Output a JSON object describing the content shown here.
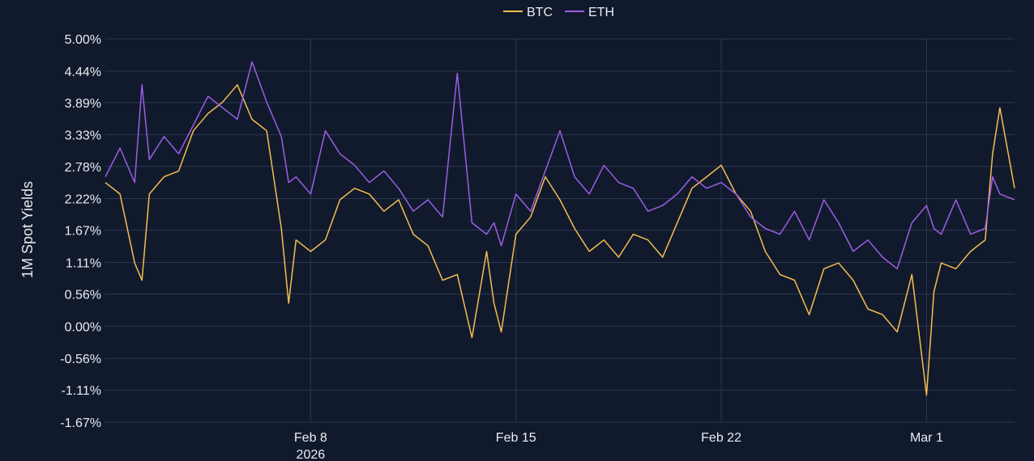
{
  "chart_data": {
    "type": "line",
    "title": "",
    "xlabel": "",
    "ylabel": "1M Spot Yields",
    "y_unit": "%",
    "ylim": [
      -1.67,
      5.0
    ],
    "yticks": [
      -1.67,
      -1.11,
      -0.56,
      0.0,
      0.56,
      1.11,
      1.67,
      2.22,
      2.78,
      3.33,
      3.89,
      4.44,
      5.0
    ],
    "ytick_labels": [
      "-1.67%",
      "-1.11%",
      "-0.56%",
      "0.00%",
      "0.56%",
      "1.11%",
      "1.67%",
      "2.22%",
      "2.78%",
      "3.33%",
      "3.89%",
      "4.44%",
      "5.00%"
    ],
    "xlim": [
      "2026-02-01",
      "2026-03-04"
    ],
    "xticks": [
      {
        "date": "2026-02-08",
        "label": "Feb 8",
        "sublabel": "2026"
      },
      {
        "date": "2026-02-15",
        "label": "Feb 15",
        "sublabel": ""
      },
      {
        "date": "2026-02-22",
        "label": "Feb 22",
        "sublabel": ""
      },
      {
        "date": "2026-03-01",
        "label": "Mar 1",
        "sublabel": ""
      }
    ],
    "grid": true,
    "legend_position": "top-center",
    "series": [
      {
        "name": "BTC",
        "color": "#f5bd4f",
        "points": [
          [
            "2026-02-01",
            2.5
          ],
          [
            "2026-02-01T12:00",
            2.3
          ],
          [
            "2026-02-02",
            1.1
          ],
          [
            "2026-02-02T06:00",
            0.8
          ],
          [
            "2026-02-02T12:00",
            2.3
          ],
          [
            "2026-02-03",
            2.6
          ],
          [
            "2026-02-03T12:00",
            2.7
          ],
          [
            "2026-02-04",
            3.4
          ],
          [
            "2026-02-04T12:00",
            3.7
          ],
          [
            "2026-02-05",
            3.9
          ],
          [
            "2026-02-05T12:00",
            4.2
          ],
          [
            "2026-02-06",
            3.6
          ],
          [
            "2026-02-06T12:00",
            3.4
          ],
          [
            "2026-02-07",
            1.7
          ],
          [
            "2026-02-07T06:00",
            0.4
          ],
          [
            "2026-02-07T12:00",
            1.5
          ],
          [
            "2026-02-08",
            1.3
          ],
          [
            "2026-02-08T12:00",
            1.5
          ],
          [
            "2026-02-09",
            2.2
          ],
          [
            "2026-02-09T12:00",
            2.4
          ],
          [
            "2026-02-10",
            2.3
          ],
          [
            "2026-02-10T12:00",
            2.0
          ],
          [
            "2026-02-11",
            2.2
          ],
          [
            "2026-02-11T12:00",
            1.6
          ],
          [
            "2026-02-12",
            1.4
          ],
          [
            "2026-02-12T12:00",
            0.8
          ],
          [
            "2026-02-13",
            0.9
          ],
          [
            "2026-02-13T12:00",
            -0.2
          ],
          [
            "2026-02-14",
            1.3
          ],
          [
            "2026-02-14T06:00",
            0.4
          ],
          [
            "2026-02-14T12:00",
            -0.1
          ],
          [
            "2026-02-15",
            1.6
          ],
          [
            "2026-02-15T12:00",
            1.9
          ],
          [
            "2026-02-16",
            2.6
          ],
          [
            "2026-02-16T12:00",
            2.2
          ],
          [
            "2026-02-17",
            1.7
          ],
          [
            "2026-02-17T12:00",
            1.3
          ],
          [
            "2026-02-18",
            1.5
          ],
          [
            "2026-02-18T12:00",
            1.2
          ],
          [
            "2026-02-19",
            1.6
          ],
          [
            "2026-02-19T12:00",
            1.5
          ],
          [
            "2026-02-20",
            1.2
          ],
          [
            "2026-02-20T12:00",
            1.8
          ],
          [
            "2026-02-21",
            2.4
          ],
          [
            "2026-02-21T12:00",
            2.6
          ],
          [
            "2026-02-22",
            2.8
          ],
          [
            "2026-02-22T12:00",
            2.3
          ],
          [
            "2026-02-23",
            2.0
          ],
          [
            "2026-02-23T12:00",
            1.3
          ],
          [
            "2026-02-24",
            0.9
          ],
          [
            "2026-02-24T12:00",
            0.8
          ],
          [
            "2026-02-25",
            0.2
          ],
          [
            "2026-02-25T12:00",
            1.0
          ],
          [
            "2026-02-26",
            1.1
          ],
          [
            "2026-02-26T12:00",
            0.8
          ],
          [
            "2026-02-27",
            0.3
          ],
          [
            "2026-02-27T12:00",
            0.2
          ],
          [
            "2026-02-28",
            -0.1
          ],
          [
            "2026-02-28T12:00",
            0.9
          ],
          [
            "2026-03-01",
            -1.2
          ],
          [
            "2026-03-01T06:00",
            0.6
          ],
          [
            "2026-03-01T12:00",
            1.1
          ],
          [
            "2026-03-02",
            1.0
          ],
          [
            "2026-03-02T12:00",
            1.3
          ],
          [
            "2026-03-03",
            1.5
          ],
          [
            "2026-03-03T06:00",
            3.0
          ],
          [
            "2026-03-03T12:00",
            3.8
          ],
          [
            "2026-03-04",
            2.4
          ]
        ]
      },
      {
        "name": "ETH",
        "color": "#9b5de5",
        "points": [
          [
            "2026-02-01",
            2.6
          ],
          [
            "2026-02-01T12:00",
            3.1
          ],
          [
            "2026-02-02",
            2.5
          ],
          [
            "2026-02-02T06:00",
            4.2
          ],
          [
            "2026-02-02T12:00",
            2.9
          ],
          [
            "2026-02-03",
            3.3
          ],
          [
            "2026-02-03T12:00",
            3.0
          ],
          [
            "2026-02-04",
            3.5
          ],
          [
            "2026-02-04T12:00",
            4.0
          ],
          [
            "2026-02-05",
            3.8
          ],
          [
            "2026-02-05T12:00",
            3.6
          ],
          [
            "2026-02-06",
            4.6
          ],
          [
            "2026-02-06T12:00",
            3.9
          ],
          [
            "2026-02-07",
            3.3
          ],
          [
            "2026-02-07T06:00",
            2.5
          ],
          [
            "2026-02-07T12:00",
            2.6
          ],
          [
            "2026-02-08",
            2.3
          ],
          [
            "2026-02-08T12:00",
            3.4
          ],
          [
            "2026-02-09",
            3.0
          ],
          [
            "2026-02-09T12:00",
            2.8
          ],
          [
            "2026-02-10",
            2.5
          ],
          [
            "2026-02-10T12:00",
            2.7
          ],
          [
            "2026-02-11",
            2.4
          ],
          [
            "2026-02-11T12:00",
            2.0
          ],
          [
            "2026-02-12",
            2.2
          ],
          [
            "2026-02-12T12:00",
            1.9
          ],
          [
            "2026-02-13",
            4.4
          ],
          [
            "2026-02-13T12:00",
            1.8
          ],
          [
            "2026-02-14",
            1.6
          ],
          [
            "2026-02-14T06:00",
            1.8
          ],
          [
            "2026-02-14T12:00",
            1.4
          ],
          [
            "2026-02-15",
            2.3
          ],
          [
            "2026-02-15T12:00",
            2.0
          ],
          [
            "2026-02-16",
            2.7
          ],
          [
            "2026-02-16T12:00",
            3.4
          ],
          [
            "2026-02-17",
            2.6
          ],
          [
            "2026-02-17T12:00",
            2.3
          ],
          [
            "2026-02-18",
            2.8
          ],
          [
            "2026-02-18T12:00",
            2.5
          ],
          [
            "2026-02-19",
            2.4
          ],
          [
            "2026-02-19T12:00",
            2.0
          ],
          [
            "2026-02-20",
            2.1
          ],
          [
            "2026-02-20T12:00",
            2.3
          ],
          [
            "2026-02-21",
            2.6
          ],
          [
            "2026-02-21T12:00",
            2.4
          ],
          [
            "2026-02-22",
            2.5
          ],
          [
            "2026-02-22T12:00",
            2.3
          ],
          [
            "2026-02-23",
            1.9
          ],
          [
            "2026-02-23T12:00",
            1.7
          ],
          [
            "2026-02-24",
            1.6
          ],
          [
            "2026-02-24T12:00",
            2.0
          ],
          [
            "2026-02-25",
            1.5
          ],
          [
            "2026-02-25T12:00",
            2.2
          ],
          [
            "2026-02-26",
            1.8
          ],
          [
            "2026-02-26T12:00",
            1.3
          ],
          [
            "2026-02-27",
            1.5
          ],
          [
            "2026-02-27T12:00",
            1.2
          ],
          [
            "2026-02-28",
            1.0
          ],
          [
            "2026-02-28T12:00",
            1.8
          ],
          [
            "2026-03-01",
            2.1
          ],
          [
            "2026-03-01T06:00",
            1.7
          ],
          [
            "2026-03-01T12:00",
            1.6
          ],
          [
            "2026-03-02",
            2.2
          ],
          [
            "2026-03-02T12:00",
            1.6
          ],
          [
            "2026-03-03",
            1.7
          ],
          [
            "2026-03-03T06:00",
            2.6
          ],
          [
            "2026-03-03T12:00",
            2.3
          ],
          [
            "2026-03-04",
            2.2
          ]
        ]
      }
    ]
  }
}
